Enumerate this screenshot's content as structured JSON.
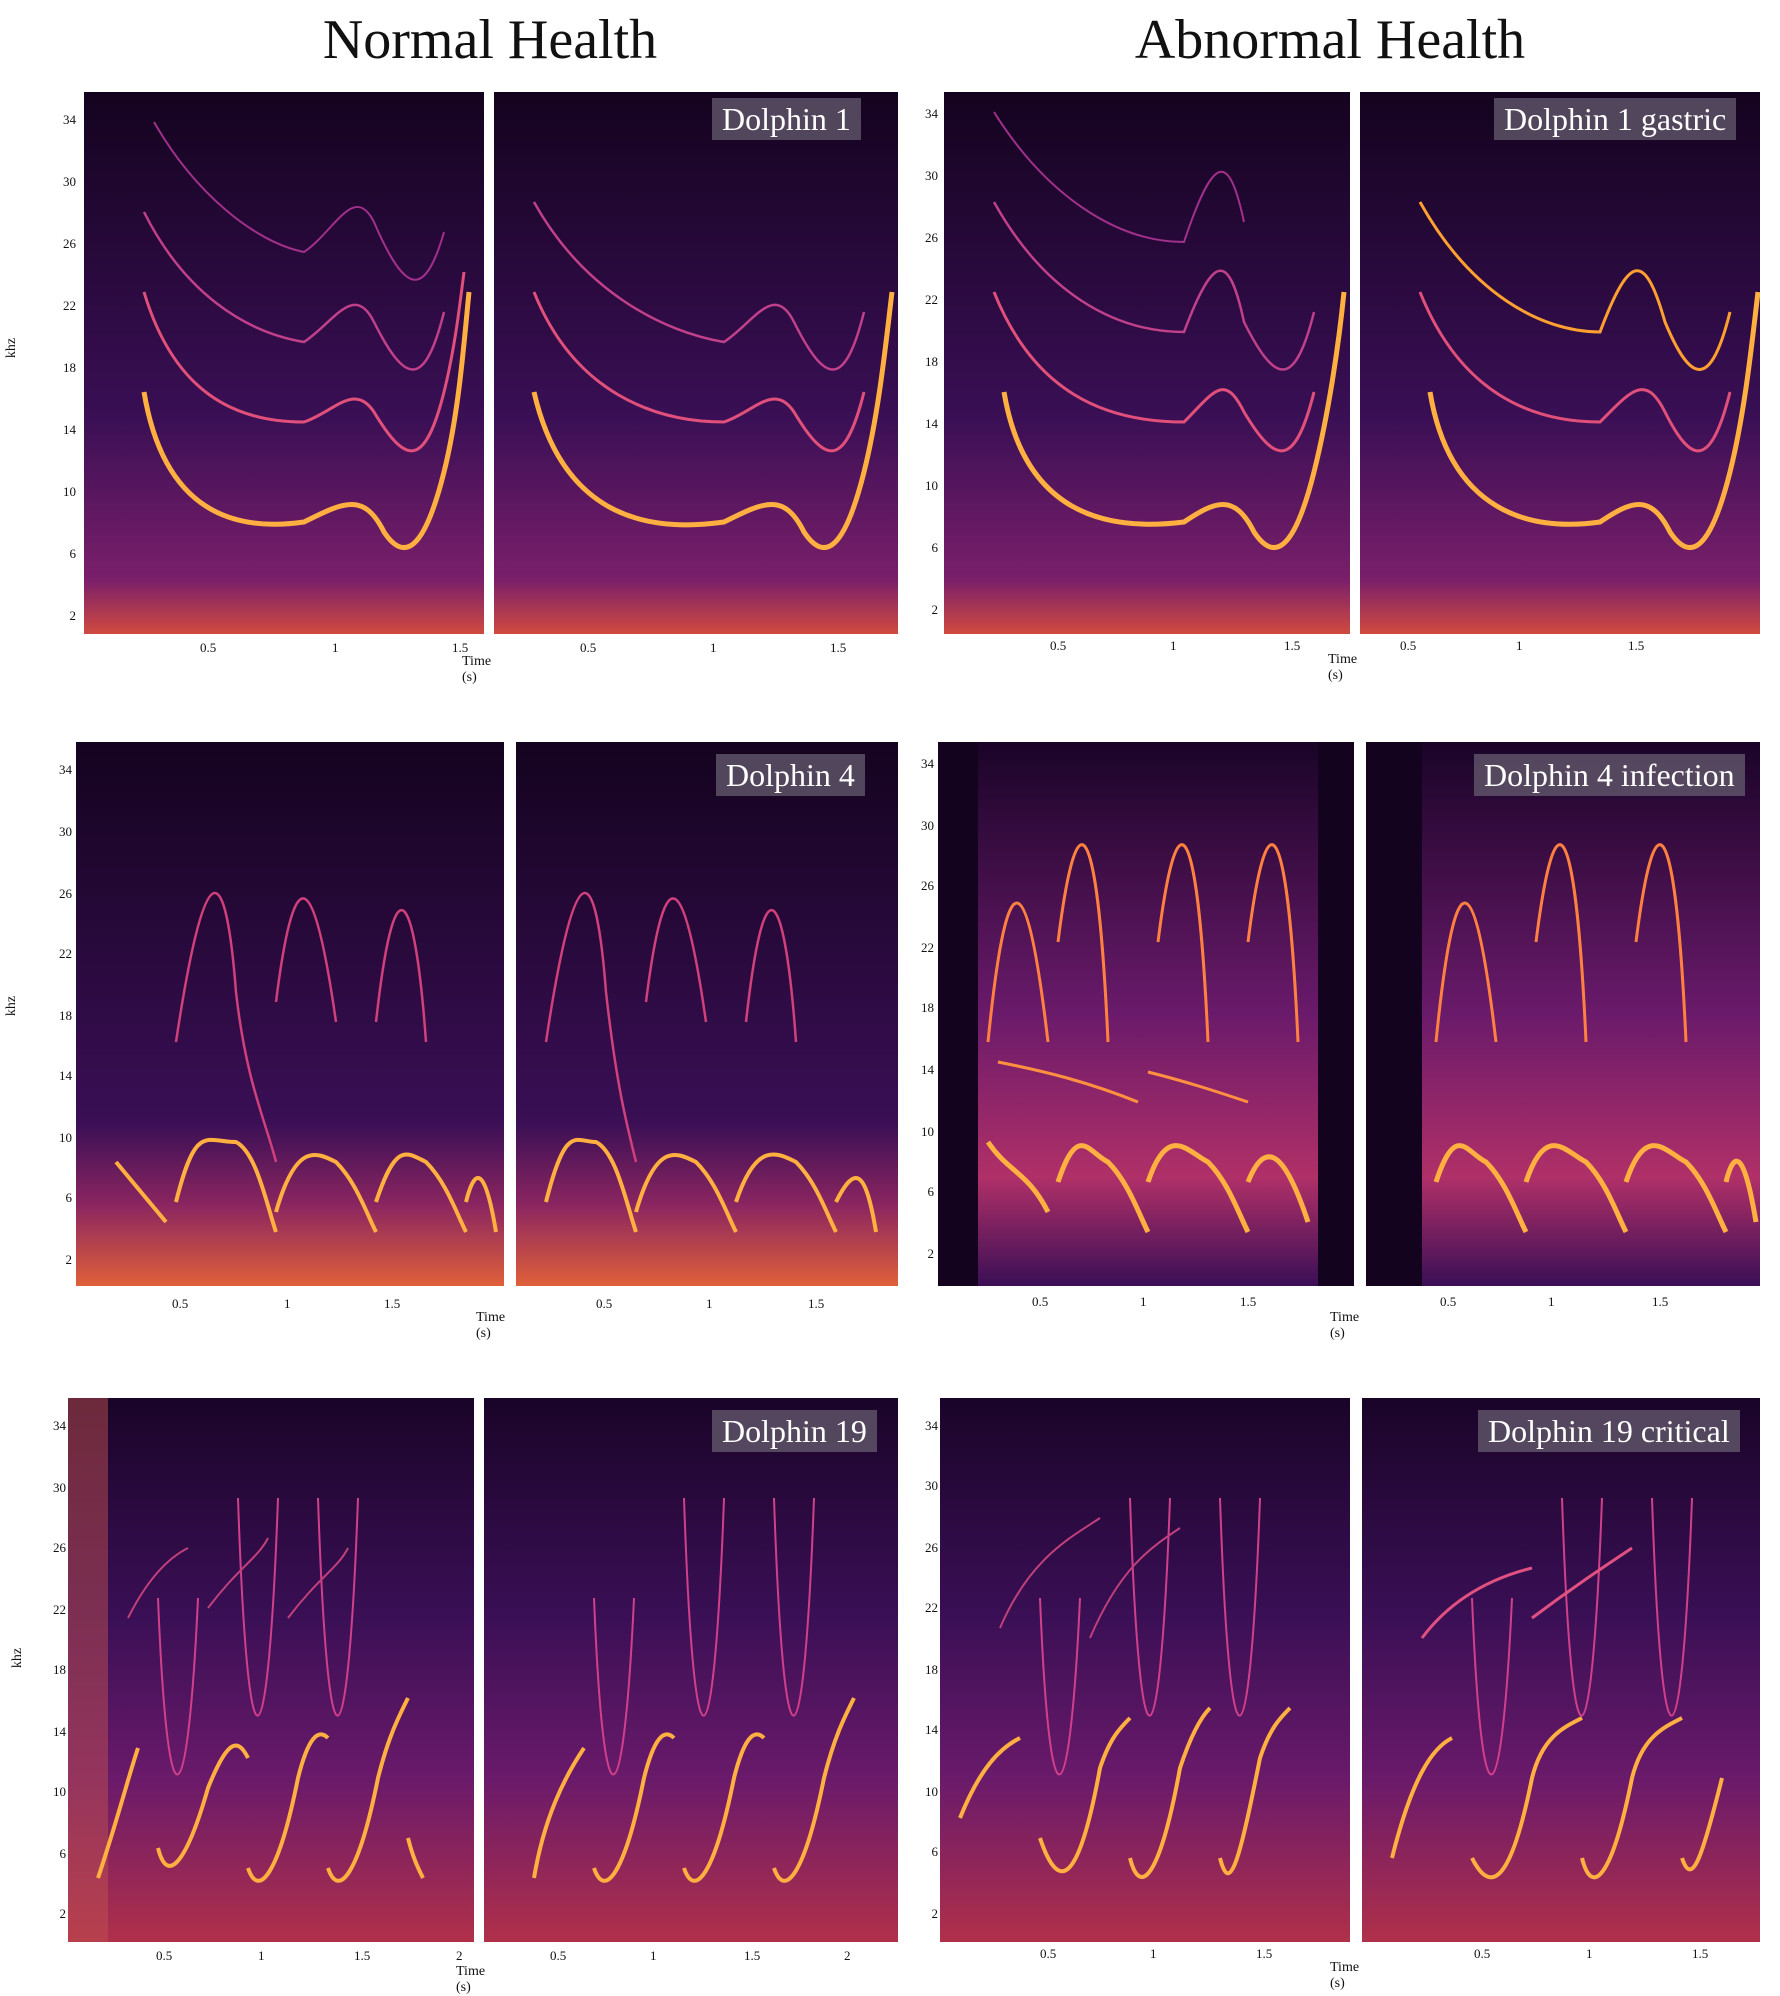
{
  "titles": {
    "left": "Normal Health",
    "right": "Abnormal Health"
  },
  "axis": {
    "ylabel": "khz",
    "xlabel": "Time (s)",
    "yticks": [
      "34",
      "30",
      "26",
      "22",
      "18",
      "14",
      "10",
      "6",
      "2"
    ],
    "xticks": [
      "0.5",
      "1",
      "1.5"
    ],
    "xticks_long": [
      "0.5",
      "1",
      "1.5",
      "2"
    ]
  },
  "panels": {
    "d1_normal": "Dolphin 1",
    "d1_abnormal": "Dolphin 1 gastric",
    "d4_normal": "Dolphin 4",
    "d4_abnormal": "Dolphin 4 infection",
    "d19_normal": "Dolphin 19",
    "d19_abnormal": "Dolphin 19 critical"
  },
  "colors": {
    "background": "#14031f",
    "low": "#5a1a7a",
    "mid": "#c0306a",
    "high": "#ff9a20",
    "peak": "#fff3a0"
  }
}
